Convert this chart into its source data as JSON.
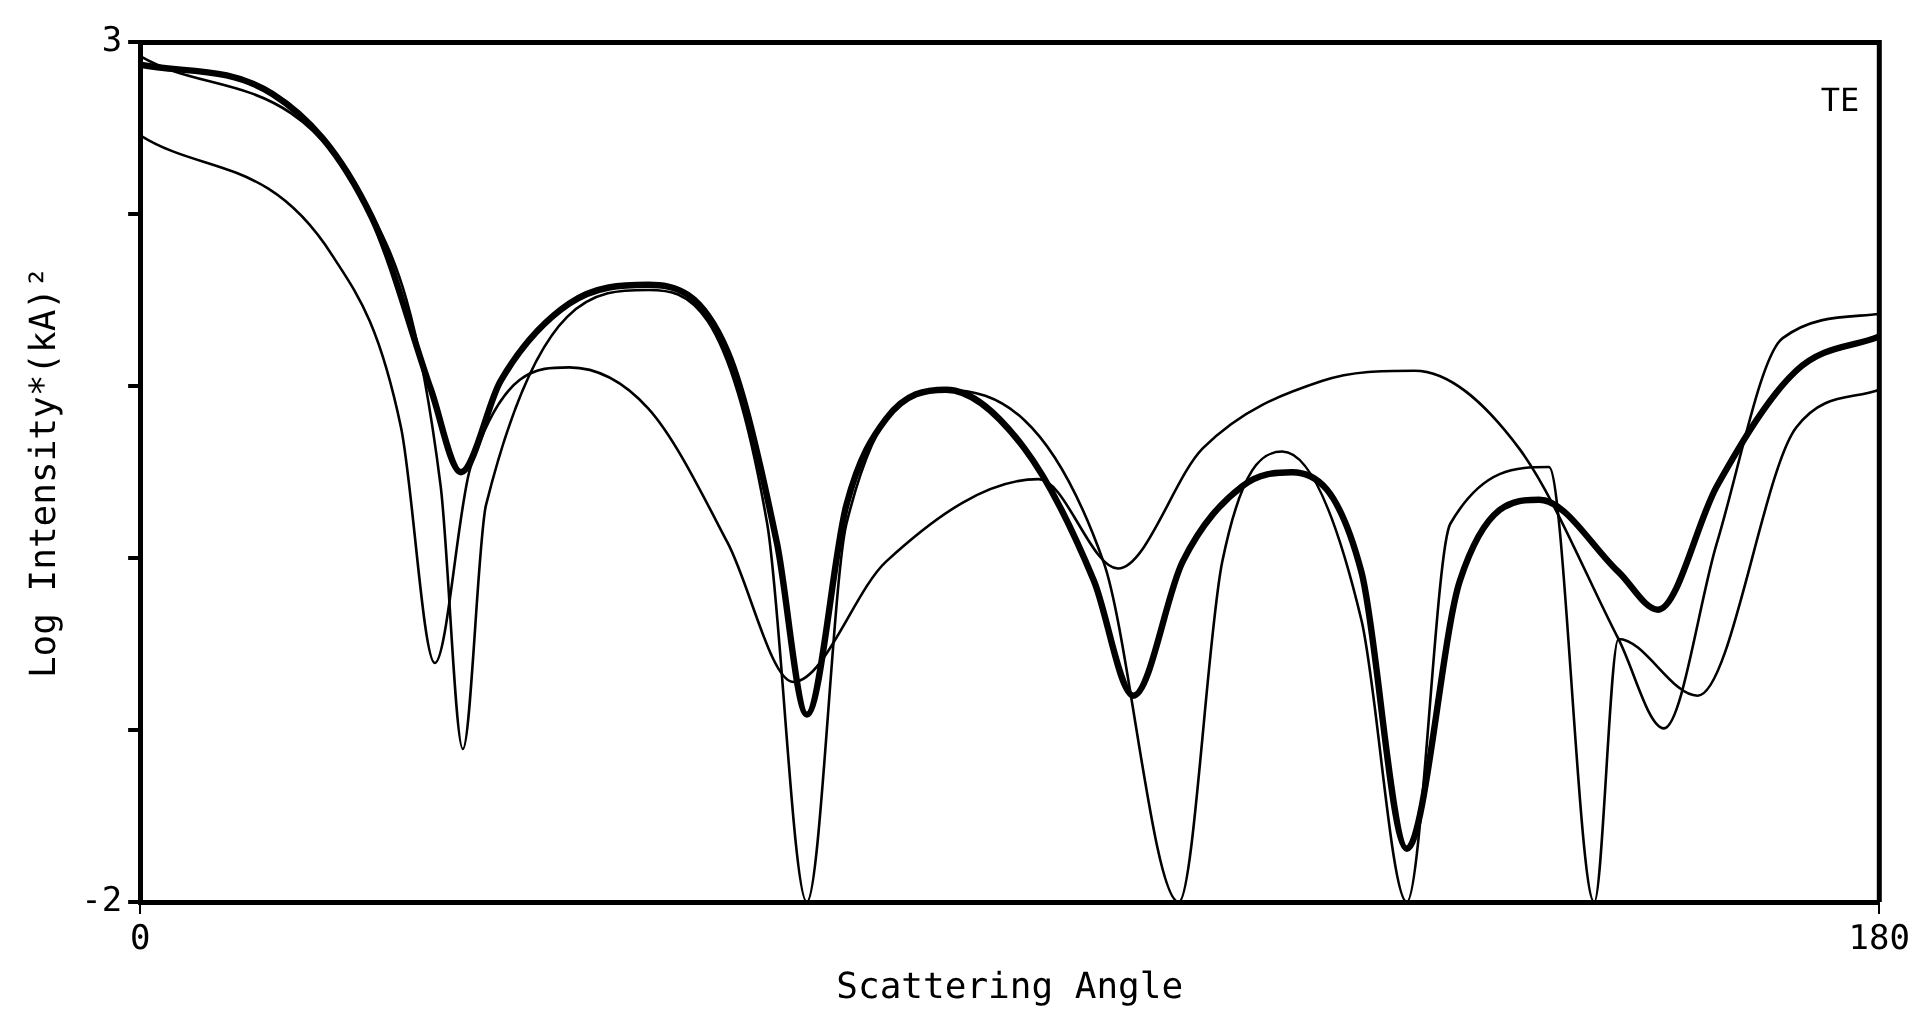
{
  "chart_data": {
    "type": "line",
    "xlabel": "Scattering Angle",
    "ylabel": "Log Intensity*(kA)²",
    "xlim": [
      0,
      180
    ],
    "xticks": [
      0,
      180
    ],
    "ylim": [
      -2,
      3
    ],
    "yticks": [
      -2,
      {
        "value": -1,
        "label": null
      },
      {
        "value": 0,
        "label": null
      },
      {
        "value": 1,
        "label": null
      },
      {
        "value": 2,
        "label": null
      },
      3
    ],
    "grid": false,
    "annotations": [
      "TE"
    ],
    "series": [
      {
        "color": "#000000",
        "x": [
          0,
          13.7,
          24,
          30.1,
          33.2,
          37.3,
          44.4,
          52.6,
          60.8,
          65.9,
          69,
          73.1,
          77.2,
          83.4,
          91.5,
          98.7,
          102.8,
          107.9,
          114.1,
          119.2,
          126.4,
          131.1,
          136.6,
          144.8,
          153,
          157.1,
          163.2,
          171.4,
          180
        ],
        "values": [
          2.87,
          2.7,
          1.98,
          0.98,
          0.5,
          1.03,
          1.48,
          1.59,
          1.2,
          0.09,
          -0.91,
          0.31,
          0.81,
          0.98,
          0.64,
          -0.13,
          -0.8,
          -0.02,
          0.42,
          0.5,
          -0.08,
          -1.69,
          -0.13,
          0.34,
          -0.08,
          -0.3,
          0.42,
          1.09,
          1.29
        ]
      },
      {
        "color": "#000000",
        "x": [
          0,
          19.9,
          27,
          30.5,
          34.2,
          44.4,
          52.6,
          60.8,
          67.6,
          77.2,
          93,
          101.2,
          110,
          122.3,
          131.9,
          142.7,
          153,
          157.7,
          163.2,
          170,
          180
        ],
        "values": [
          2.46,
          1.76,
          0.76,
          -0.61,
          0.53,
          1.11,
          0.87,
          0.09,
          -0.72,
          -0.02,
          0.46,
          -0.06,
          0.64,
          1.03,
          1.09,
          0.64,
          -0.47,
          -0.99,
          0.09,
          1.28,
          1.42
        ]
      },
      {
        "color": "#000000",
        "x": [
          0,
          24,
          31.1,
          33.4,
          35.8,
          52.6,
          64.9,
          69,
          73.1,
          83.4,
          99.7,
          107.5,
          112,
          118.2,
          126.4,
          131.1,
          135.6,
          145.8,
          150.5,
          153,
          161.2,
          171.4,
          180
        ],
        "values": [
          2.92,
          2,
          0.42,
          -1.11,
          0.31,
          1.56,
          0.2,
          -2,
          0.2,
          0.98,
          -0.02,
          -2,
          -0.02,
          0.62,
          -0.36,
          -2,
          0.2,
          0.53,
          -2,
          -0.47,
          -0.8,
          0.76,
          0.98
        ]
      }
    ]
  }
}
